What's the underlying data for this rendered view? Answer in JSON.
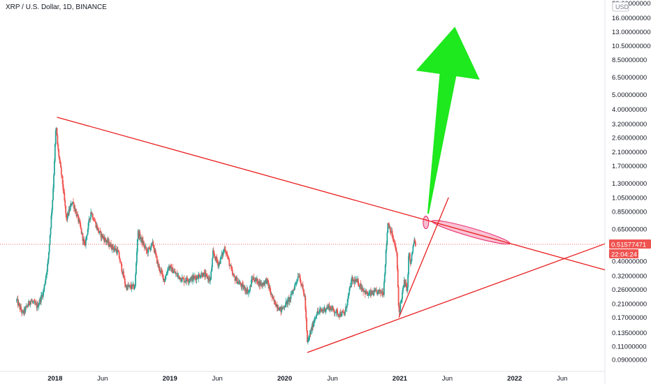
{
  "header": {
    "title": "XRP / U.S. Dollar, 1D, BINANCE"
  },
  "price_axis": {
    "currency": "USD"
  },
  "current_price": {
    "value": "0.51577471",
    "countdown": "22:04:24"
  },
  "colors": {
    "up": "#26a69a",
    "down": "#ef5350",
    "trendline": "#e91e1e",
    "arrow": "#1ee81e",
    "ellipse": "#f48fb1",
    "price_tag": "#ef5350"
  },
  "chart_data": {
    "type": "candlestick",
    "symbol": "XRP / U.S. Dollar",
    "interval": "1D",
    "exchange": "BINANCE",
    "y_scale": "log",
    "ylim": [
      0.075,
      21
    ],
    "xlim": [
      "2017-07-10",
      "2022-10-15"
    ],
    "y_ticks": [
      "0.09000000",
      "0.11000000",
      "0.13500000",
      "0.17000000",
      "0.21000000",
      "0.26000000",
      "0.32000000",
      "0.40000000",
      "0.51577471",
      "0.65000000",
      "0.85000000",
      "1.05000000",
      "1.30000000",
      "1.70000000",
      "2.10000000",
      "2.60000000",
      "3.20000000",
      "4.00000000",
      "5.00000000",
      "6.50000000",
      "8.50000000",
      "10.50000000",
      "13.00000000",
      "16.00000000",
      "20.00000000"
    ],
    "x_ticks": [
      {
        "date": "2018-01-01",
        "label": "2018"
      },
      {
        "date": "2018-06-01",
        "label": "Jun"
      },
      {
        "date": "2019-01-01",
        "label": "2019"
      },
      {
        "date": "2019-06-01",
        "label": "Jun"
      },
      {
        "date": "2020-01-01",
        "label": "2020"
      },
      {
        "date": "2020-06-01",
        "label": "Jun"
      },
      {
        "date": "2021-01-01",
        "label": "2021"
      },
      {
        "date": "2021-06-01",
        "label": "Jun"
      },
      {
        "date": "2022-01-01",
        "label": "2022"
      },
      {
        "date": "2022-06-01",
        "label": "Jun"
      }
    ],
    "price_path": [
      [
        "2017-09-01",
        0.22
      ],
      [
        "2017-09-20",
        0.18
      ],
      [
        "2017-10-15",
        0.22
      ],
      [
        "2017-11-05",
        0.2
      ],
      [
        "2017-11-25",
        0.25
      ],
      [
        "2017-12-10",
        0.4
      ],
      [
        "2017-12-25",
        1.1
      ],
      [
        "2018-01-04",
        3.15
      ],
      [
        "2018-01-10",
        2.2
      ],
      [
        "2018-01-25",
        1.3
      ],
      [
        "2018-02-06",
        0.75
      ],
      [
        "2018-02-25",
        1.0
      ],
      [
        "2018-03-20",
        0.7
      ],
      [
        "2018-04-05",
        0.5
      ],
      [
        "2018-04-25",
        0.85
      ],
      [
        "2018-05-20",
        0.62
      ],
      [
        "2018-06-20",
        0.52
      ],
      [
        "2018-07-20",
        0.46
      ],
      [
        "2018-08-14",
        0.27
      ],
      [
        "2018-09-12",
        0.27
      ],
      [
        "2018-09-21",
        0.62
      ],
      [
        "2018-10-20",
        0.46
      ],
      [
        "2018-11-08",
        0.52
      ],
      [
        "2018-11-25",
        0.37
      ],
      [
        "2018-12-15",
        0.3
      ],
      [
        "2018-12-28",
        0.37
      ],
      [
        "2019-01-25",
        0.32
      ],
      [
        "2019-02-15",
        0.3
      ],
      [
        "2019-03-20",
        0.31
      ],
      [
        "2019-04-15",
        0.33
      ],
      [
        "2019-05-10",
        0.3
      ],
      [
        "2019-05-18",
        0.45
      ],
      [
        "2019-06-05",
        0.38
      ],
      [
        "2019-06-25",
        0.49
      ],
      [
        "2019-07-20",
        0.32
      ],
      [
        "2019-08-20",
        0.27
      ],
      [
        "2019-09-10",
        0.25
      ],
      [
        "2019-09-20",
        0.31
      ],
      [
        "2019-10-20",
        0.28
      ],
      [
        "2019-11-05",
        0.3
      ],
      [
        "2019-11-25",
        0.22
      ],
      [
        "2019-12-20",
        0.19
      ],
      [
        "2020-01-20",
        0.23
      ],
      [
        "2020-02-15",
        0.33
      ],
      [
        "2020-03-05",
        0.23
      ],
      [
        "2020-03-13",
        0.115
      ],
      [
        "2020-04-10",
        0.18
      ],
      [
        "2020-05-20",
        0.2
      ],
      [
        "2020-06-20",
        0.18
      ],
      [
        "2020-07-10",
        0.18
      ],
      [
        "2020-08-01",
        0.3
      ],
      [
        "2020-08-20",
        0.29
      ],
      [
        "2020-09-20",
        0.24
      ],
      [
        "2020-10-20",
        0.25
      ],
      [
        "2020-11-10",
        0.25
      ],
      [
        "2020-11-24",
        0.72
      ],
      [
        "2020-12-05",
        0.62
      ],
      [
        "2020-12-22",
        0.45
      ],
      [
        "2020-12-29",
        0.18
      ],
      [
        "2021-01-15",
        0.29
      ],
      [
        "2021-01-25",
        0.26
      ],
      [
        "2021-01-30",
        0.48
      ],
      [
        "2021-02-03",
        0.37
      ],
      [
        "2021-02-15",
        0.54
      ],
      [
        "2021-02-20",
        0.52
      ]
    ],
    "trendlines": [
      {
        "from": [
          "2018-01-07",
          3.55
        ],
        "to": [
          "2022-10-15",
          0.35
        ]
      },
      {
        "from": [
          "2020-03-13",
          0.1
        ],
        "to": [
          "2022-10-15",
          0.52
        ]
      },
      {
        "from": [
          "2020-12-29",
          0.17
        ],
        "to": [
          "2021-06-05",
          1.05
        ]
      }
    ],
    "annotations": [
      {
        "type": "ellipse",
        "center": [
          "2021-08-15",
          0.62
        ]
      },
      {
        "type": "ellipse",
        "center": [
          "2021-03-25",
          0.72
        ]
      },
      {
        "type": "arrow",
        "direction": "up",
        "from": [
          "2021-04-01",
          0.82
        ],
        "to": [
          "2021-06-25",
          14.0
        ]
      }
    ]
  }
}
